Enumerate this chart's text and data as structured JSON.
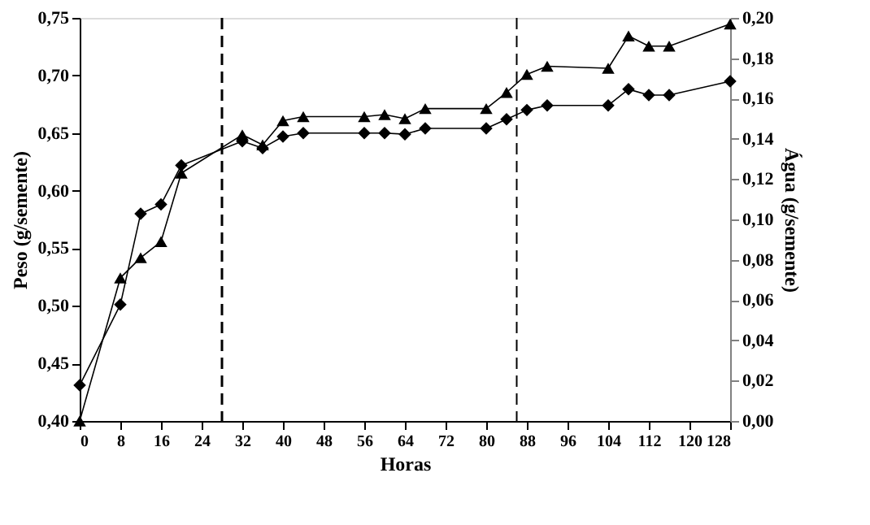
{
  "chart_data": {
    "type": "line",
    "xlabel": "Horas",
    "ylabel": "Peso (g/semente)",
    "y2label": "Água (g/semente)",
    "xlim": [
      0,
      128
    ],
    "xticks": [
      0,
      8,
      16,
      24,
      32,
      40,
      48,
      56,
      64,
      72,
      80,
      88,
      96,
      104,
      112,
      120,
      128
    ],
    "ylim": [
      0.4,
      0.75
    ],
    "yticks": [
      {
        "value": 0.4,
        "label": "0,40"
      },
      {
        "value": 0.45,
        "label": "0,45"
      },
      {
        "value": 0.5,
        "label": "0,50"
      },
      {
        "value": 0.55,
        "label": "0,55"
      },
      {
        "value": 0.6,
        "label": "0,60"
      },
      {
        "value": 0.65,
        "label": "0,65"
      },
      {
        "value": 0.7,
        "label": "0,70"
      },
      {
        "value": 0.75,
        "label": "0,75"
      }
    ],
    "y2lim": [
      0.0,
      0.2
    ],
    "y2ticks": [
      {
        "value": 0.0,
        "label": "0,00"
      },
      {
        "value": 0.02,
        "label": "0,02"
      },
      {
        "value": 0.04,
        "label": "0,04"
      },
      {
        "value": 0.06,
        "label": "0,06"
      },
      {
        "value": 0.08,
        "label": "0,08"
      },
      {
        "value": 0.1,
        "label": "0,10"
      },
      {
        "value": 0.12,
        "label": "0,12"
      },
      {
        "value": 0.14,
        "label": "0,14"
      },
      {
        "value": 0.16,
        "label": "0,16"
      },
      {
        "value": 0.18,
        "label": "0,18"
      },
      {
        "value": 0.2,
        "label": "0,20"
      }
    ],
    "grid": false,
    "line_style": "solid",
    "series": [
      {
        "color": "#000000",
        "marker": "diamond",
        "x": [
          0,
          8,
          12,
          16,
          20,
          32,
          36,
          40,
          44,
          56,
          60,
          64,
          68,
          80,
          84,
          88,
          92,
          104,
          108,
          112,
          116,
          128
        ],
        "values": [
          0.431,
          0.501,
          0.58,
          0.588,
          0.622,
          0.643,
          0.637,
          0.647,
          0.65,
          0.65,
          0.65,
          0.649,
          0.654,
          0.654,
          0.662,
          0.67,
          0.674,
          0.674,
          0.688,
          0.683,
          0.683,
          0.695
        ]
      },
      {
        "color": "#000000",
        "marker": "triangle",
        "axis": "y2",
        "x": [
          0,
          8,
          12,
          16,
          20,
          32,
          36,
          40,
          44,
          56,
          60,
          64,
          68,
          80,
          84,
          88,
          92,
          104,
          108,
          112,
          116,
          128
        ],
        "values": [
          0.0,
          0.071,
          0.081,
          0.089,
          0.123,
          0.142,
          0.137,
          0.149,
          0.151,
          0.151,
          0.152,
          0.15,
          0.155,
          0.155,
          0.163,
          0.172,
          0.176,
          0.175,
          0.191,
          0.186,
          0.186,
          0.197
        ]
      }
    ],
    "ref_lines": [
      {
        "axis": "x",
        "value": 28,
        "line_style": "dashed",
        "color": "#000000"
      },
      {
        "axis": "x",
        "value": 86,
        "line_style": "dashed",
        "color": "#000000"
      }
    ]
  }
}
